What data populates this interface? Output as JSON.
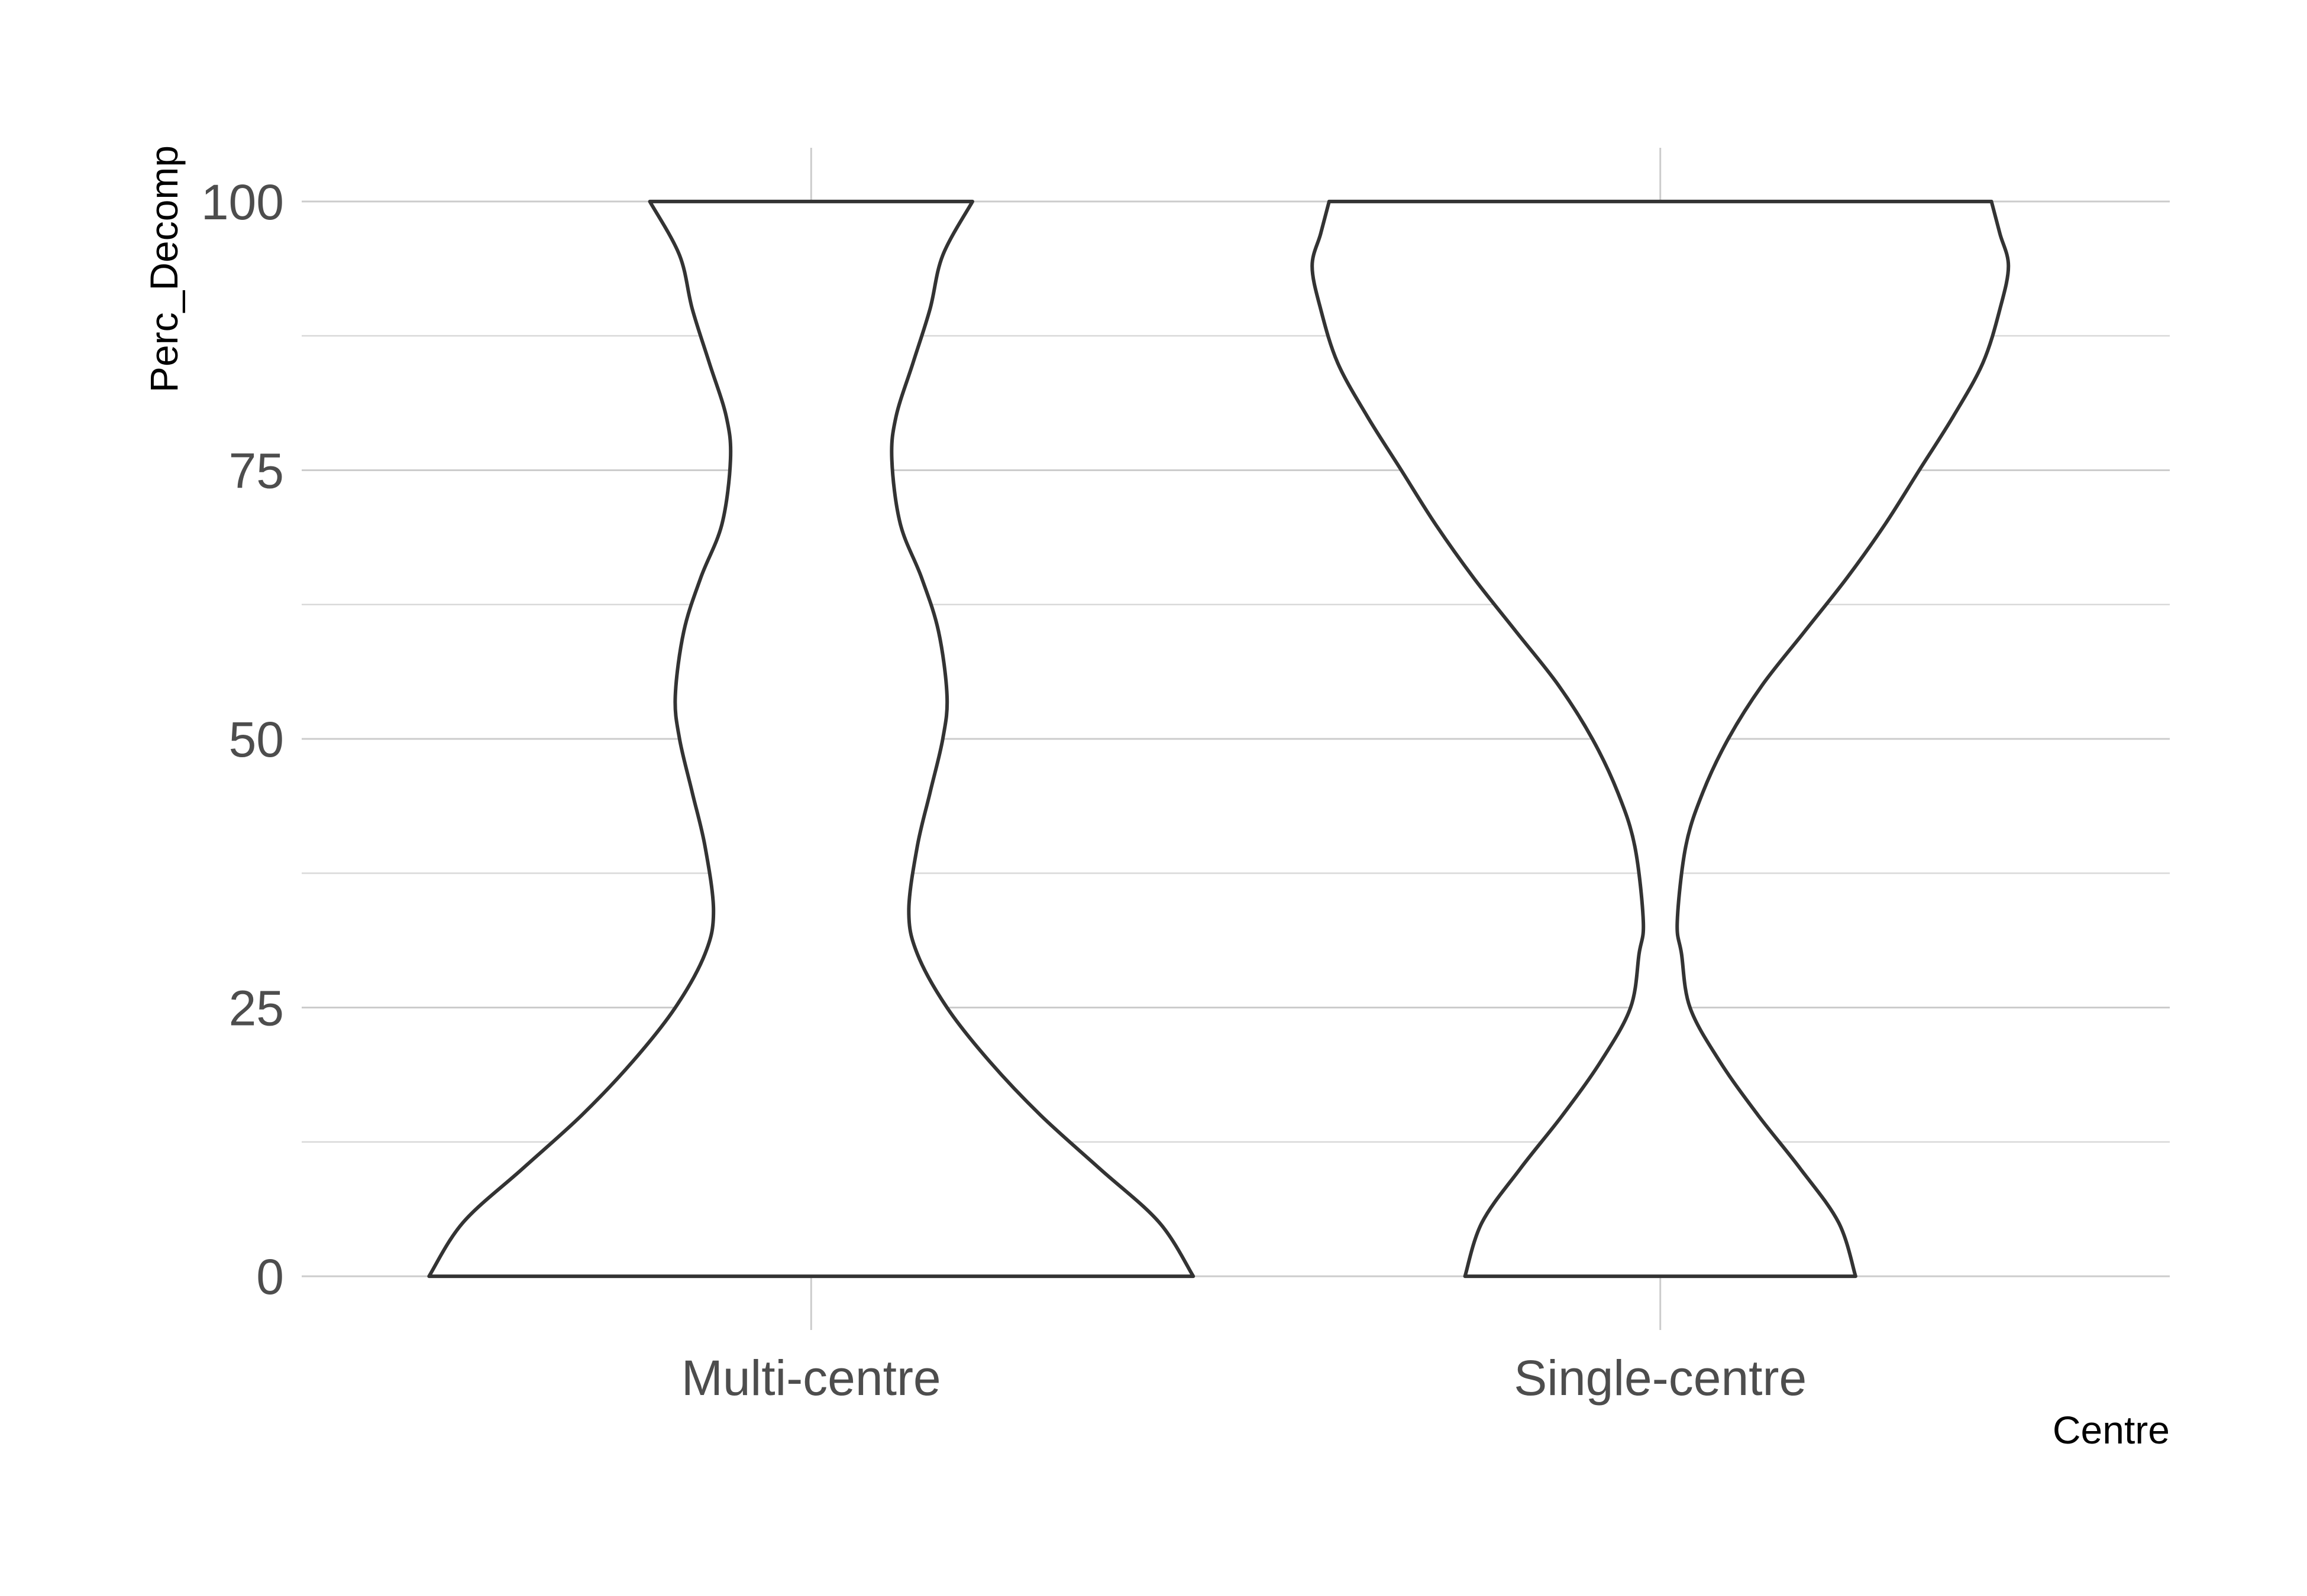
{
  "chart_data": {
    "type": "violin",
    "title": "",
    "xlabel": "Centre",
    "ylabel": "Perc_Decomp",
    "categories": [
      "Multi-centre",
      "Single-centre"
    ],
    "ylim": [
      -5,
      105
    ],
    "yticks": [
      0,
      25,
      50,
      75,
      100
    ],
    "grid": true,
    "legend": "none",
    "colors": {
      "fill": "#ffffff",
      "outline": "#333333",
      "grid": "#cccccc"
    },
    "series": [
      {
        "category": "Multi-centre",
        "density_profile": [
          {
            "y": 0,
            "half_width": 0.45
          },
          {
            "y": 5,
            "half_width": 0.41
          },
          {
            "y": 10,
            "half_width": 0.34
          },
          {
            "y": 15,
            "half_width": 0.27
          },
          {
            "y": 20,
            "half_width": 0.21
          },
          {
            "y": 25,
            "half_width": 0.16
          },
          {
            "y": 30,
            "half_width": 0.125
          },
          {
            "y": 34,
            "half_width": 0.115
          },
          {
            "y": 40,
            "half_width": 0.125
          },
          {
            "y": 45,
            "half_width": 0.14
          },
          {
            "y": 50,
            "half_width": 0.155
          },
          {
            "y": 54,
            "half_width": 0.16
          },
          {
            "y": 60,
            "half_width": 0.15
          },
          {
            "y": 65,
            "half_width": 0.13
          },
          {
            "y": 70,
            "half_width": 0.105
          },
          {
            "y": 76,
            "half_width": 0.095
          },
          {
            "y": 80,
            "half_width": 0.1
          },
          {
            "y": 85,
            "half_width": 0.12
          },
          {
            "y": 90,
            "half_width": 0.14
          },
          {
            "y": 95,
            "half_width": 0.155
          },
          {
            "y": 100,
            "half_width": 0.19
          }
        ]
      },
      {
        "category": "Single-centre",
        "density_profile": [
          {
            "y": 0,
            "half_width": 0.23
          },
          {
            "y": 5,
            "half_width": 0.21
          },
          {
            "y": 10,
            "half_width": 0.165
          },
          {
            "y": 15,
            "half_width": 0.115
          },
          {
            "y": 20,
            "half_width": 0.07
          },
          {
            "y": 25,
            "half_width": 0.035
          },
          {
            "y": 30,
            "half_width": 0.025
          },
          {
            "y": 33,
            "half_width": 0.02
          },
          {
            "y": 40,
            "half_width": 0.03
          },
          {
            "y": 45,
            "half_width": 0.05
          },
          {
            "y": 50,
            "half_width": 0.08
          },
          {
            "y": 55,
            "half_width": 0.12
          },
          {
            "y": 60,
            "half_width": 0.17
          },
          {
            "y": 65,
            "half_width": 0.22
          },
          {
            "y": 70,
            "half_width": 0.265
          },
          {
            "y": 75,
            "half_width": 0.305
          },
          {
            "y": 80,
            "half_width": 0.345
          },
          {
            "y": 85,
            "half_width": 0.38
          },
          {
            "y": 90,
            "half_width": 0.4
          },
          {
            "y": 94,
            "half_width": 0.41
          },
          {
            "y": 97,
            "half_width": 0.4
          },
          {
            "y": 100,
            "half_width": 0.39
          }
        ]
      }
    ]
  }
}
